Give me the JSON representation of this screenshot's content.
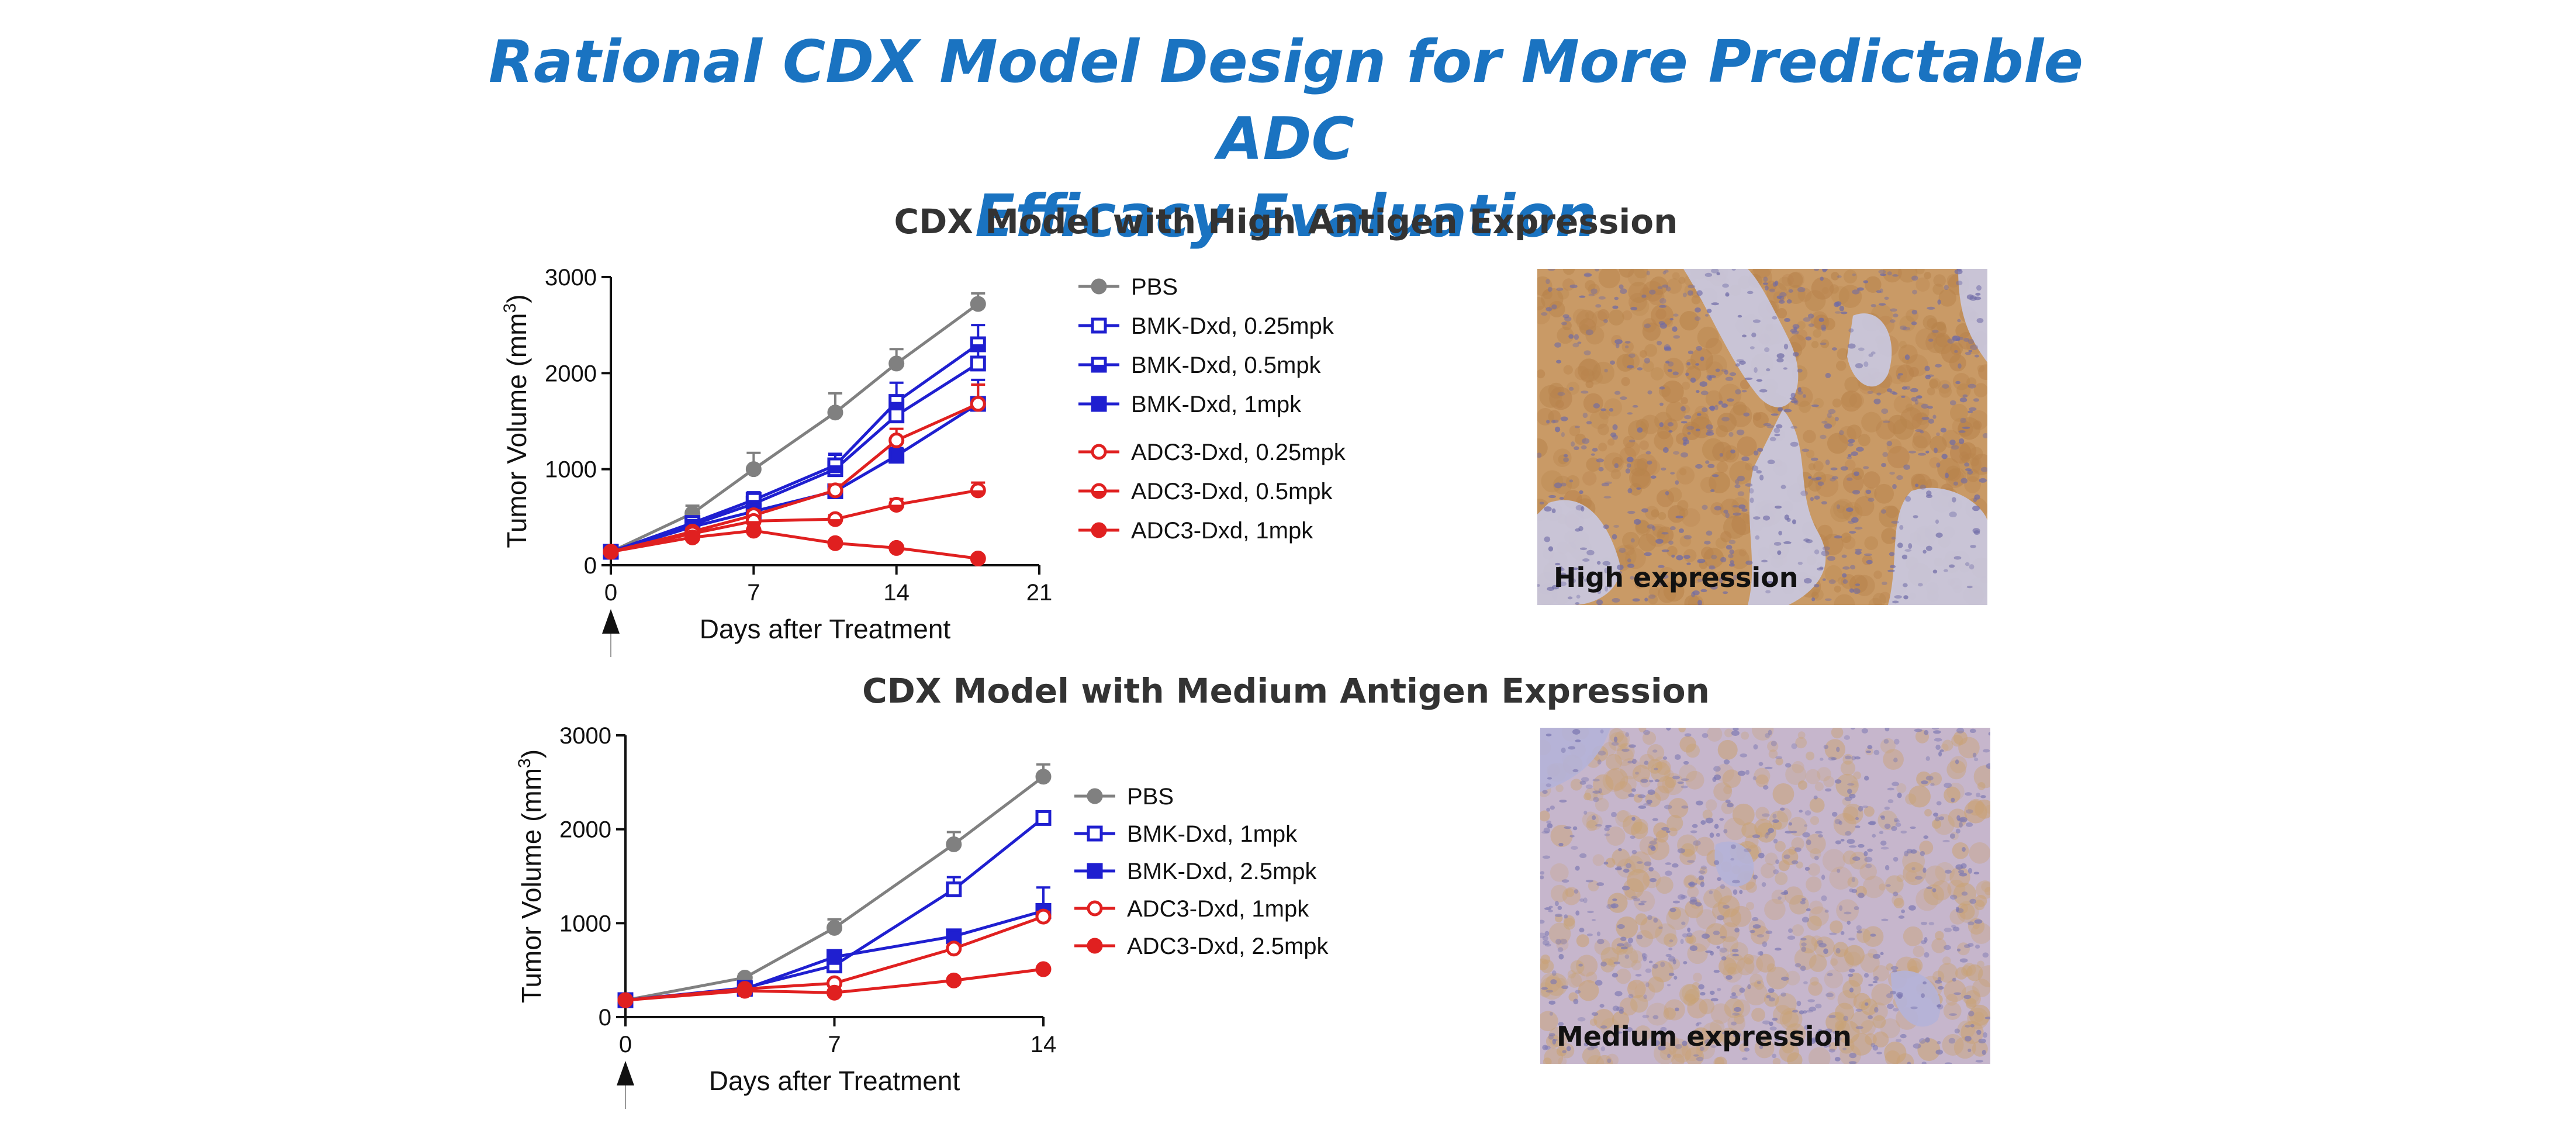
{
  "title": {
    "line1": "Rational CDX Model Design for More Predictable ADC",
    "line2": "Efficacy Evaluation"
  },
  "panels": [
    {
      "title": "CDX Model with High Antigen Expression",
      "image_caption": "High expression",
      "image_colors": {
        "base": "#c99a66",
        "stain": "#b8834c",
        "stroma": "#c9c9e2",
        "nuclei": "#6e6aa6"
      }
    },
    {
      "title": "CDX Model with Medium Antigen Expression",
      "image_caption": "Medium expression",
      "image_colors": {
        "base": "#c6b6cc",
        "stain": "#c9a274",
        "stroma": "#b4b2d8",
        "nuclei": "#7c78b2"
      }
    }
  ],
  "chart_data": [
    {
      "type": "line",
      "title": "",
      "xlabel": "Days after Treatment",
      "ylabel": "Tumor Volume (mm",
      "ylabel_sup": "3",
      "ylabel_end": ")",
      "xlim": [
        0,
        21
      ],
      "ylim": [
        0,
        3000
      ],
      "xticks": [
        0,
        7,
        14,
        21
      ],
      "yticks": [
        0,
        1000,
        2000,
        3000
      ],
      "treatment_marker_day": 0,
      "grid": false,
      "legend_position": "right",
      "series": [
        {
          "name": "PBS",
          "color": "#808080",
          "marker": "circle",
          "fill": true,
          "x": [
            0,
            4,
            7,
            11,
            14,
            18
          ],
          "y": [
            140,
            540,
            1000,
            1590,
            2100,
            2720
          ],
          "err": [
            30,
            80,
            170,
            200,
            150,
            110
          ]
        },
        {
          "name": "BMK-Dxd, 0.25mpk",
          "color": "#1f1fd0",
          "marker": "square",
          "fill": false,
          "x": [
            0,
            4,
            7,
            11,
            14,
            18
          ],
          "y": [
            140,
            420,
            640,
            1000,
            1560,
            2100
          ],
          "err": [
            30,
            60,
            90,
            150,
            200,
            200
          ]
        },
        {
          "name": "BMK-Dxd, 0.5mpk",
          "color": "#1f1fd0",
          "marker": "square",
          "fill": "half",
          "x": [
            0,
            4,
            7,
            11,
            14,
            18
          ],
          "y": [
            140,
            440,
            680,
            1040,
            1700,
            2300
          ],
          "err": [
            30,
            60,
            80,
            120,
            200,
            200
          ]
        },
        {
          "name": "BMK-Dxd, 1mpk",
          "color": "#1f1fd0",
          "marker": "square",
          "fill": true,
          "x": [
            0,
            4,
            7,
            11,
            14,
            18
          ],
          "y": [
            140,
            400,
            560,
            770,
            1140,
            1680
          ],
          "err": [
            30,
            50,
            60,
            60,
            80,
            250
          ]
        },
        {
          "name": "ADC3-Dxd, 0.25mpk",
          "color": "#e02020",
          "marker": "circle",
          "fill": false,
          "x": [
            0,
            4,
            7,
            11,
            14,
            18
          ],
          "y": [
            140,
            350,
            520,
            780,
            1300,
            1680
          ],
          "err": [
            30,
            40,
            50,
            60,
            120,
            200
          ]
        },
        {
          "name": "ADC3-Dxd, 0.5mpk",
          "color": "#e02020",
          "marker": "circle",
          "fill": "half",
          "x": [
            0,
            4,
            7,
            11,
            14,
            18
          ],
          "y": [
            140,
            330,
            460,
            480,
            630,
            780
          ],
          "err": [
            30,
            40,
            40,
            40,
            60,
            80
          ]
        },
        {
          "name": "ADC3-Dxd, 1mpk",
          "color": "#e02020",
          "marker": "circle",
          "fill": true,
          "x": [
            0,
            4,
            7,
            11,
            14,
            18
          ],
          "y": [
            140,
            290,
            360,
            230,
            180,
            70
          ],
          "err": [
            30,
            30,
            30,
            20,
            20,
            10
          ]
        }
      ]
    },
    {
      "type": "line",
      "title": "",
      "xlabel": "Days after Treatment",
      "ylabel": "Tumor Volume (mm",
      "ylabel_sup": "3",
      "ylabel_end": ")",
      "xlim": [
        0,
        14
      ],
      "ylim": [
        0,
        3000
      ],
      "xticks": [
        0,
        7,
        14
      ],
      "yticks": [
        0,
        1000,
        2000,
        3000
      ],
      "treatment_marker_day": 0,
      "grid": false,
      "legend_position": "right",
      "series": [
        {
          "name": "PBS",
          "color": "#808080",
          "marker": "circle",
          "fill": true,
          "x": [
            0,
            4,
            7,
            11,
            14
          ],
          "y": [
            180,
            420,
            950,
            1840,
            2560
          ],
          "err": [
            20,
            40,
            90,
            130,
            130
          ]
        },
        {
          "name": "BMK-Dxd, 1mpk",
          "color": "#1f1fd0",
          "marker": "square",
          "fill": false,
          "x": [
            0,
            4,
            7,
            11,
            14
          ],
          "y": [
            180,
            310,
            550,
            1360,
            2120
          ],
          "err": [
            20,
            30,
            60,
            130,
            50
          ]
        },
        {
          "name": "BMK-Dxd, 2.5mpk",
          "color": "#1f1fd0",
          "marker": "square",
          "fill": true,
          "x": [
            0,
            4,
            7,
            11,
            14
          ],
          "y": [
            180,
            300,
            640,
            860,
            1130
          ],
          "err": [
            20,
            30,
            50,
            40,
            250
          ]
        },
        {
          "name": "ADC3-Dxd, 1mpk",
          "color": "#e02020",
          "marker": "circle",
          "fill": false,
          "x": [
            0,
            4,
            7,
            11,
            14
          ],
          "y": [
            180,
            300,
            360,
            730,
            1070
          ],
          "err": [
            20,
            20,
            30,
            40,
            50
          ]
        },
        {
          "name": "ADC3-Dxd, 2.5mpk",
          "color": "#e02020",
          "marker": "circle",
          "fill": true,
          "x": [
            0,
            4,
            7,
            11,
            14
          ],
          "y": [
            180,
            280,
            260,
            390,
            510
          ],
          "err": [
            20,
            20,
            20,
            20,
            20
          ]
        }
      ]
    }
  ]
}
